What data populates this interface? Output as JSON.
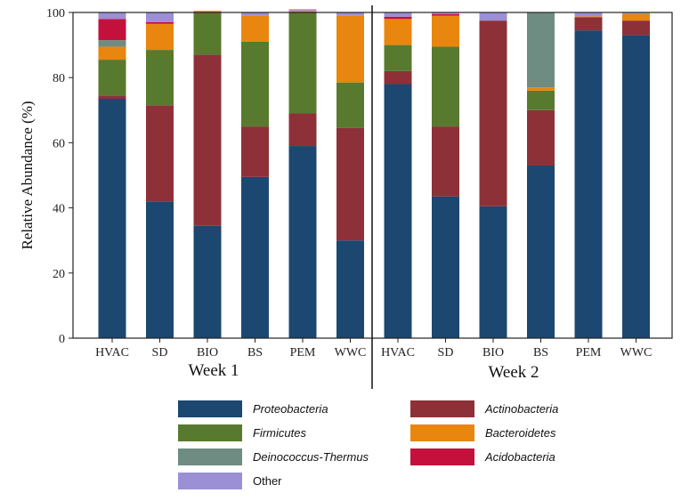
{
  "chart_data": {
    "type": "bar",
    "stacked": true,
    "ylabel": "Relative Abundance (%)",
    "xlabel": "",
    "ylim": [
      0,
      100
    ],
    "yticks": [
      0,
      20,
      40,
      60,
      80,
      100
    ],
    "grid": false,
    "legend_position": "bottom",
    "groups": [
      {
        "label": "Week 1",
        "categories": [
          "HVAC",
          "SD",
          "BIO",
          "BS",
          "PEM",
          "WWC"
        ]
      },
      {
        "label": "Week 2",
        "categories": [
          "HVAC",
          "SD",
          "BIO",
          "BS",
          "PEM",
          "WWC"
        ]
      }
    ],
    "categories": [
      "HVAC",
      "SD",
      "BIO",
      "BS",
      "PEM",
      "WWC",
      "HVAC",
      "SD",
      "BIO",
      "BS",
      "PEM",
      "WWC"
    ],
    "series": [
      {
        "name": "Proteobacteria",
        "color": "#1b4770",
        "values": [
          73.5,
          42,
          34.5,
          49.5,
          59,
          30,
          78,
          43.5,
          40.5,
          53,
          94.5,
          93
        ]
      },
      {
        "name": "Actinobacteria",
        "color": "#8e3038",
        "values": [
          1,
          29.5,
          52.5,
          15.5,
          10,
          34.5,
          4,
          21.5,
          57,
          17,
          4,
          4.5
        ]
      },
      {
        "name": "Firmicutes",
        "color": "#587a2e",
        "values": [
          11,
          17,
          13,
          26,
          31,
          14,
          8,
          24.5,
          0,
          6,
          0,
          0
        ]
      },
      {
        "name": "Bacteroidetes",
        "color": "#e8860f",
        "values": [
          4,
          8,
          0.5,
          8,
          0.5,
          20.5,
          8,
          9.5,
          0,
          1,
          0.3,
          2
        ]
      },
      {
        "name": "Deinococcus-Thermus",
        "color": "#6e8c82",
        "values": [
          2,
          0,
          0,
          0,
          0,
          0,
          0,
          0,
          0,
          23,
          0,
          0
        ]
      },
      {
        "name": "Acidobacteria",
        "color": "#c4113c",
        "values": [
          6.5,
          0.5,
          0,
          0,
          0,
          0,
          0.7,
          0.5,
          0,
          0,
          0,
          0
        ]
      },
      {
        "name": "Other",
        "color": "#9b8fd6",
        "values": [
          2,
          3,
          0,
          1,
          0.5,
          1,
          1.3,
          0.5,
          2.5,
          0,
          1.2,
          0.5
        ]
      }
    ]
  },
  "legend": {
    "items": [
      {
        "label": "Proteobacteria",
        "color": "#1b4770",
        "italic": true
      },
      {
        "label": "Actinobacteria",
        "color": "#8e3038",
        "italic": true
      },
      {
        "label": "Firmicutes",
        "color": "#587a2e",
        "italic": true
      },
      {
        "label": "Bacteroidetes",
        "color": "#e8860f",
        "italic": true
      },
      {
        "label": "Deinococcus-Thermus",
        "color": "#6e8c82",
        "italic": true
      },
      {
        "label": "Acidobacteria",
        "color": "#c4113c",
        "italic": true
      },
      {
        "label": "Other",
        "color": "#9b8fd6",
        "italic": false
      }
    ]
  }
}
